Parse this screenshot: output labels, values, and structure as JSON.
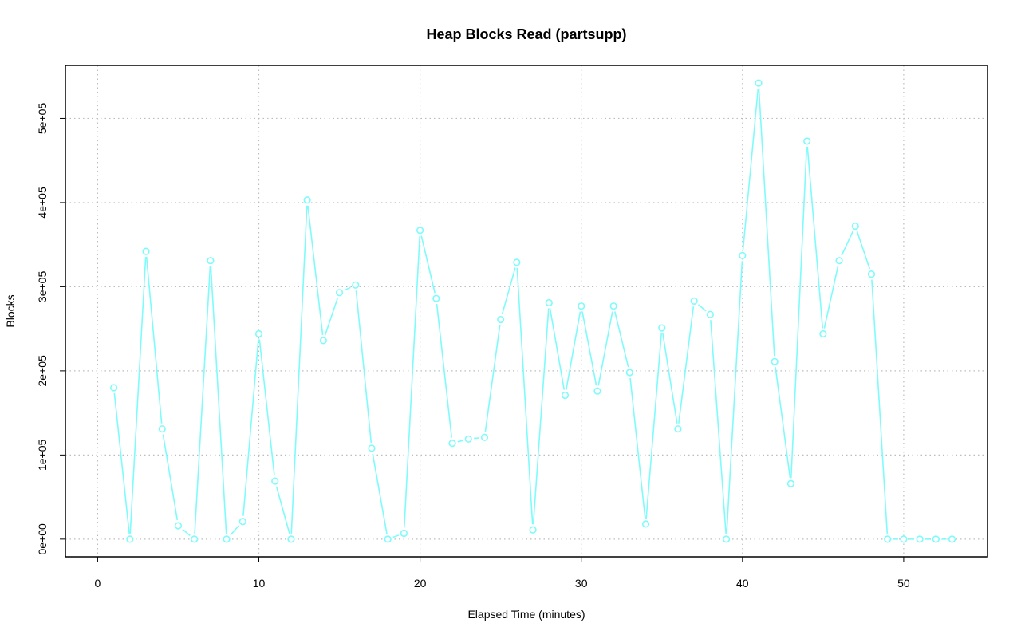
{
  "chart_data": {
    "type": "line",
    "title": "Heap Blocks Read (partsupp)",
    "xlabel": "Elapsed Time (minutes)",
    "ylabel": "Blocks",
    "xlim": [
      -2,
      55.2
    ],
    "ylim": [
      -21000,
      563000
    ],
    "x_ticks": [
      0,
      10,
      20,
      30,
      40,
      50
    ],
    "x_tick_labels": [
      "0",
      "10",
      "20",
      "30",
      "40",
      "50"
    ],
    "y_ticks": [
      0,
      100000,
      200000,
      300000,
      400000,
      500000
    ],
    "y_tick_labels": [
      "0e+00",
      "1e+05",
      "2e+05",
      "3e+05",
      "4e+05",
      "5e+05"
    ],
    "grid": true,
    "color": "#7ffbfb",
    "series": [
      {
        "x": [
          1,
          2,
          3,
          4,
          5,
          6,
          7,
          8,
          9,
          10,
          11,
          12,
          13,
          14,
          15,
          16,
          17,
          18,
          19,
          20,
          21,
          22,
          23,
          24,
          25,
          26,
          27,
          28,
          29,
          30,
          31,
          32,
          33,
          34,
          35,
          36,
          37,
          38,
          39,
          40,
          41,
          42,
          43,
          44,
          45,
          46,
          47,
          48,
          49,
          50,
          51,
          52,
          53
        ],
        "y": [
          180000,
          0,
          342000,
          131000,
          16000,
          0,
          331000,
          0,
          21000,
          244000,
          69000,
          0,
          403000,
          236000,
          293000,
          302000,
          108000,
          0,
          7000,
          367000,
          286000,
          114000,
          119000,
          121000,
          261000,
          329000,
          11000,
          281000,
          171000,
          277000,
          176000,
          277000,
          198000,
          18000,
          251000,
          131000,
          283000,
          267000,
          0,
          337000,
          542000,
          211000,
          66000,
          473000,
          244000,
          331000,
          372000,
          315000,
          0,
          0,
          0,
          0,
          0
        ]
      }
    ]
  }
}
